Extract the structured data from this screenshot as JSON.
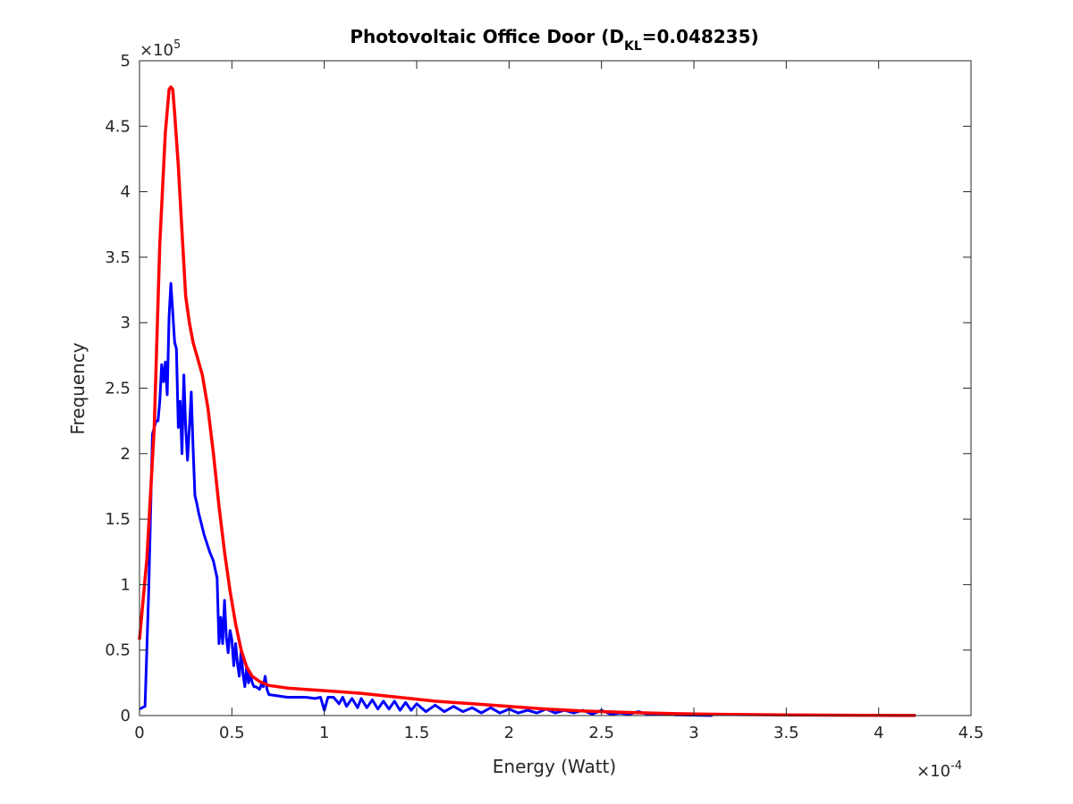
{
  "chart_data": {
    "type": "line",
    "title_main": "Photovoltaic Office Door (D",
    "title_sub": "KL",
    "title_end": "=0.048235)",
    "xlabel": "Energy (Watt)",
    "ylabel": "Frequency",
    "x_exponent_base": "×10",
    "x_exponent": "-4",
    "y_exponent_base": "×10",
    "y_exponent": "5",
    "xlim": [
      0,
      4.5
    ],
    "ylim": [
      0,
      5
    ],
    "x_ticks": [
      0,
      0.5,
      1,
      1.5,
      2,
      2.5,
      3,
      3.5,
      4,
      4.5
    ],
    "x_tick_labels": [
      "0",
      "0.5",
      "1",
      "1.5",
      "2",
      "2.5",
      "3",
      "3.5",
      "4",
      "4.5"
    ],
    "y_ticks": [
      0,
      0.5,
      1,
      1.5,
      2,
      2.5,
      3,
      3.5,
      4,
      4.5,
      5
    ],
    "y_tick_labels": [
      "0",
      "0.5",
      "1",
      "1.5",
      "2",
      "2.5",
      "3",
      "3.5",
      "4",
      "4.5",
      "5"
    ],
    "grid": false,
    "legend": "none",
    "series": [
      {
        "color": "#0000ff",
        "x": [
          0.0,
          0.03,
          0.05,
          0.07,
          0.09,
          0.1,
          0.11,
          0.12,
          0.13,
          0.14,
          0.15,
          0.16,
          0.17,
          0.18,
          0.19,
          0.2,
          0.21,
          0.22,
          0.23,
          0.24,
          0.25,
          0.26,
          0.27,
          0.28,
          0.29,
          0.3,
          0.31,
          0.32,
          0.35,
          0.38,
          0.4,
          0.42,
          0.43,
          0.44,
          0.45,
          0.46,
          0.47,
          0.48,
          0.49,
          0.5,
          0.51,
          0.52,
          0.53,
          0.54,
          0.55,
          0.56,
          0.57,
          0.58,
          0.59,
          0.6,
          0.61,
          0.62,
          0.63,
          0.64,
          0.65,
          0.66,
          0.67,
          0.68,
          0.69,
          0.7,
          0.75,
          0.8,
          0.85,
          0.9,
          0.95,
          0.98,
          1.0,
          1.02,
          1.05,
          1.08,
          1.1,
          1.12,
          1.15,
          1.18,
          1.2,
          1.23,
          1.26,
          1.29,
          1.32,
          1.35,
          1.38,
          1.41,
          1.44,
          1.47,
          1.5,
          1.55,
          1.6,
          1.65,
          1.7,
          1.75,
          1.8,
          1.85,
          1.9,
          1.95,
          2.0,
          2.05,
          2.1,
          2.15,
          2.2,
          2.25,
          2.3,
          2.35,
          2.4,
          2.45,
          2.5,
          2.55,
          2.6,
          2.65,
          2.7,
          2.75,
          2.8,
          2.85,
          2.9,
          3.0,
          3.1
        ],
        "y": [
          0.05,
          0.07,
          0.95,
          2.15,
          2.25,
          2.25,
          2.4,
          2.68,
          2.55,
          2.7,
          2.45,
          3.05,
          3.3,
          3.08,
          2.85,
          2.8,
          2.2,
          2.4,
          2.0,
          2.6,
          2.2,
          1.95,
          2.2,
          2.47,
          2.05,
          1.68,
          1.62,
          1.55,
          1.38,
          1.25,
          1.18,
          1.05,
          0.55,
          0.75,
          0.55,
          0.88,
          0.6,
          0.48,
          0.65,
          0.58,
          0.38,
          0.55,
          0.4,
          0.3,
          0.5,
          0.32,
          0.22,
          0.38,
          0.25,
          0.32,
          0.25,
          0.22,
          0.22,
          0.21,
          0.2,
          0.24,
          0.22,
          0.3,
          0.2,
          0.16,
          0.15,
          0.14,
          0.14,
          0.14,
          0.13,
          0.14,
          0.04,
          0.14,
          0.14,
          0.09,
          0.14,
          0.07,
          0.13,
          0.06,
          0.13,
          0.06,
          0.12,
          0.05,
          0.11,
          0.05,
          0.11,
          0.04,
          0.1,
          0.04,
          0.09,
          0.03,
          0.08,
          0.03,
          0.07,
          0.03,
          0.06,
          0.02,
          0.06,
          0.02,
          0.05,
          0.02,
          0.04,
          0.02,
          0.05,
          0.02,
          0.04,
          0.02,
          0.04,
          0.01,
          0.04,
          0.01,
          0.02,
          0.01,
          0.03,
          0.01,
          0.01,
          0.01,
          0.005,
          0.003,
          0.0
        ]
      },
      {
        "color": "#ff0000",
        "x": [
          0.0,
          0.04,
          0.08,
          0.11,
          0.14,
          0.16,
          0.17,
          0.18,
          0.19,
          0.21,
          0.23,
          0.25,
          0.27,
          0.29,
          0.31,
          0.34,
          0.37,
          0.4,
          0.43,
          0.46,
          0.49,
          0.52,
          0.55,
          0.58,
          0.61,
          0.65,
          0.7,
          0.8,
          0.9,
          1.0,
          1.2,
          1.4,
          1.6,
          1.8,
          2.0,
          2.2,
          2.4,
          2.6,
          2.8,
          3.0,
          3.2,
          3.4,
          3.6,
          3.8,
          4.0,
          4.2
        ],
        "y": [
          0.58,
          1.2,
          2.2,
          3.6,
          4.45,
          4.78,
          4.8,
          4.78,
          4.6,
          4.2,
          3.7,
          3.2,
          3.0,
          2.85,
          2.75,
          2.6,
          2.35,
          2.0,
          1.6,
          1.25,
          0.95,
          0.7,
          0.5,
          0.37,
          0.3,
          0.26,
          0.23,
          0.21,
          0.2,
          0.19,
          0.17,
          0.14,
          0.11,
          0.09,
          0.07,
          0.05,
          0.035,
          0.025,
          0.018,
          0.012,
          0.008,
          0.006,
          0.004,
          0.003,
          0.002,
          0.001
        ]
      }
    ]
  }
}
